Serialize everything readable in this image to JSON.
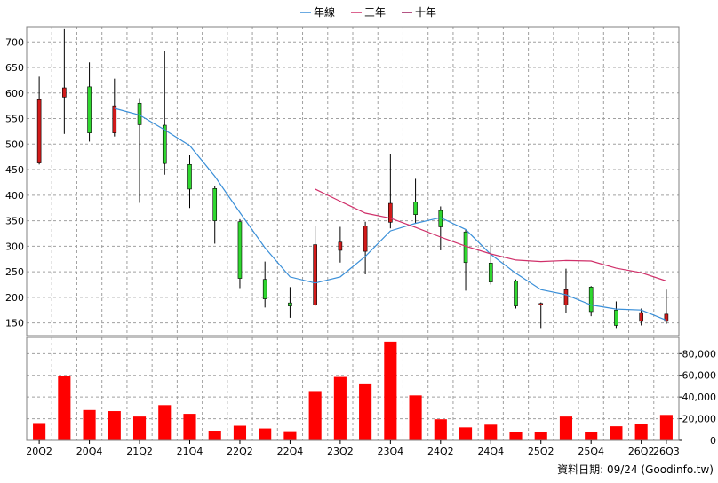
{
  "chart_data": {
    "type": "candlestick+bar",
    "legend": [
      {
        "name": "年線",
        "color": "#3a8fd8"
      },
      {
        "name": "三年",
        "color": "#d0306a"
      },
      {
        "name": "十年",
        "color": "#9a1a5a"
      }
    ],
    "legend_position": "top-center",
    "price_axis": {
      "ylim": [
        125,
        730
      ],
      "ticks": [
        150,
        200,
        250,
        300,
        350,
        400,
        450,
        500,
        550,
        600,
        650,
        700
      ]
    },
    "volume_axis": {
      "ylim": [
        0,
        95000
      ],
      "ticks": [
        0,
        20000,
        40000,
        60000,
        80000
      ],
      "tick_labels": [
        "0",
        "20,000",
        "40,000",
        "60,000",
        "80,000"
      ]
    },
    "x_tick_labels": [
      {
        "index": 0,
        "label": "20Q2"
      },
      {
        "index": 2,
        "label": "20Q4"
      },
      {
        "index": 4,
        "label": "21Q2"
      },
      {
        "index": 6,
        "label": "21Q4"
      },
      {
        "index": 8,
        "label": "22Q2"
      },
      {
        "index": 10,
        "label": "22Q4"
      },
      {
        "index": 12,
        "label": "23Q2"
      },
      {
        "index": 14,
        "label": "23Q4"
      },
      {
        "index": 16,
        "label": "24Q2"
      },
      {
        "index": 18,
        "label": "24Q4"
      },
      {
        "index": 20,
        "label": "25Q2"
      },
      {
        "index": 22,
        "label": "25Q4"
      },
      {
        "index": 24,
        "label": "26Q2"
      },
      {
        "index": 25,
        "label": "26Q3"
      }
    ],
    "candles": [
      {
        "open": 463,
        "close": 587,
        "high": 632,
        "low": 460
      },
      {
        "open": 592,
        "close": 610,
        "high": 725,
        "low": 520
      },
      {
        "open": 612,
        "close": 522,
        "high": 660,
        "low": 505
      },
      {
        "open": 522,
        "close": 575,
        "high": 628,
        "low": 515
      },
      {
        "open": 580,
        "close": 538,
        "high": 590,
        "low": 385
      },
      {
        "open": 537,
        "close": 462,
        "high": 683,
        "low": 440
      },
      {
        "open": 460,
        "close": 412,
        "high": 478,
        "low": 375
      },
      {
        "open": 413,
        "close": 350,
        "high": 418,
        "low": 305
      },
      {
        "open": 348,
        "close": 237,
        "high": 353,
        "low": 218
      },
      {
        "open": 235,
        "close": 197,
        "high": 270,
        "low": 180
      },
      {
        "open": 189,
        "close": 183,
        "high": 220,
        "low": 160
      },
      {
        "open": 185,
        "close": 303,
        "high": 340,
        "low": 183
      },
      {
        "open": 292,
        "close": 308,
        "high": 338,
        "low": 268
      },
      {
        "open": 290,
        "close": 340,
        "high": 348,
        "low": 245
      },
      {
        "open": 347,
        "close": 384,
        "high": 480,
        "low": 335
      },
      {
        "open": 387,
        "close": 362,
        "high": 432,
        "low": 345
      },
      {
        "open": 370,
        "close": 338,
        "high": 378,
        "low": 292
      },
      {
        "open": 328,
        "close": 268,
        "high": 332,
        "low": 213
      },
      {
        "open": 267,
        "close": 230,
        "high": 303,
        "low": 225
      },
      {
        "open": 232,
        "close": 183,
        "high": 235,
        "low": 178
      },
      {
        "open": 185,
        "close": 188,
        "high": 190,
        "low": 140
      },
      {
        "open": 185,
        "close": 215,
        "high": 256,
        "low": 170
      },
      {
        "open": 220,
        "close": 172,
        "high": 222,
        "low": 163
      },
      {
        "open": 175,
        "close": 145,
        "high": 192,
        "low": 140
      },
      {
        "open": 153,
        "close": 170,
        "high": 178,
        "low": 145
      },
      {
        "open": 153,
        "close": 167,
        "high": 215,
        "low": 148
      }
    ],
    "volume": [
      16000,
      59000,
      28000,
      27000,
      22000,
      32500,
      24500,
      9000,
      13500,
      11000,
      8500,
      45500,
      58500,
      52500,
      91000,
      41500,
      19500,
      12000,
      14500,
      7500,
      7500,
      22000,
      7500,
      13000,
      15500,
      23500
    ],
    "series": [
      {
        "name": "年線",
        "color": "#3a8fd8",
        "values": [
          null,
          null,
          null,
          570,
          557,
          528,
          497,
          437,
          366,
          297,
          240,
          228,
          240,
          280,
          330,
          345,
          356,
          333,
          284,
          247,
          215,
          205,
          185,
          177,
          175,
          155
        ]
      },
      {
        "name": "三年",
        "color": "#d0306a",
        "values": [
          null,
          null,
          null,
          null,
          null,
          null,
          null,
          null,
          null,
          null,
          null,
          412,
          388,
          365,
          355,
          337,
          318,
          300,
          285,
          273,
          270,
          272,
          271,
          257,
          248,
          232
        ]
      },
      {
        "name": "十年",
        "color": "#9a1a5a",
        "values": []
      }
    ],
    "candle_colors": {
      "up": "#d21a1a",
      "down": "#2fd82f"
    },
    "volume_color": "#ff0000",
    "grid": true
  },
  "footer": {
    "text": "資料日期: 09/24 (Goodinfo.tw)"
  }
}
